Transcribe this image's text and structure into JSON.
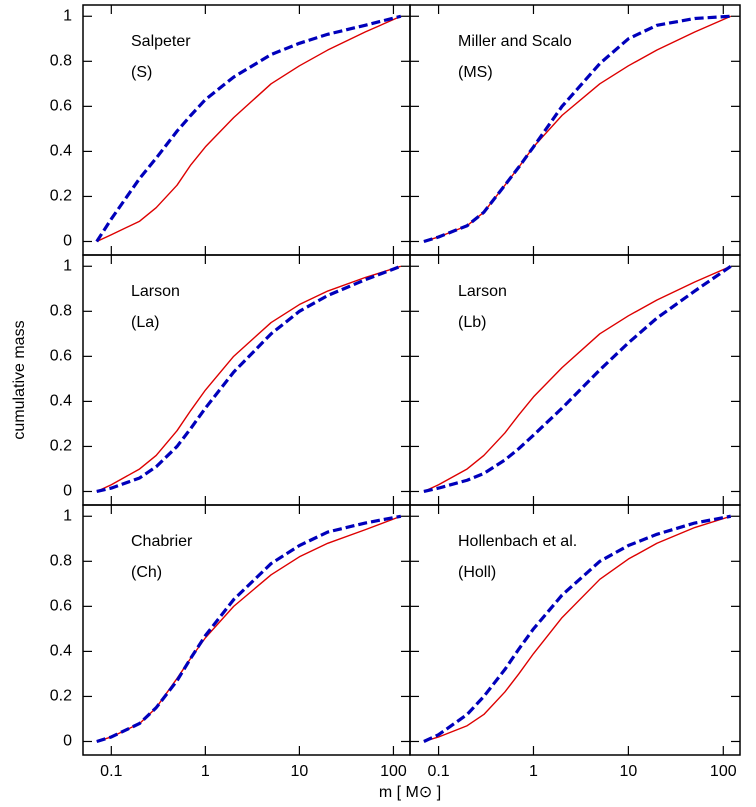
{
  "xlabel": "m   [ M⊙ ]",
  "ylabel": "cumulative mass",
  "chart_data": [
    {
      "type": "line",
      "annotations": [
        "Salpeter",
        "(S)"
      ],
      "xscale": "log",
      "x": [
        0.07,
        0.1,
        0.2,
        0.3,
        0.5,
        0.7,
        1,
        2,
        5,
        10,
        20,
        50,
        120
      ],
      "xlim": [
        0.05,
        150
      ],
      "xticks": [
        0.1,
        1,
        10,
        100
      ],
      "ylim": [
        -0.06,
        1.05
      ],
      "yticks": [
        0,
        0.2,
        0.4,
        0.6,
        0.8,
        1
      ],
      "series": [
        {
          "color": "#dd0000",
          "style": "solid",
          "values": [
            0,
            0.03,
            0.09,
            0.15,
            0.25,
            0.34,
            0.42,
            0.55,
            0.7,
            0.78,
            0.85,
            0.93,
            1
          ]
        },
        {
          "color": "#0000bb",
          "style": "dashed",
          "values": [
            0,
            0.1,
            0.28,
            0.37,
            0.49,
            0.56,
            0.63,
            0.73,
            0.83,
            0.88,
            0.92,
            0.96,
            1
          ]
        }
      ]
    },
    {
      "type": "line",
      "annotations": [
        "Miller and Scalo",
        "(MS)"
      ],
      "xscale": "log",
      "x": [
        0.07,
        0.1,
        0.2,
        0.3,
        0.5,
        0.7,
        1,
        2,
        5,
        10,
        20,
        50,
        120
      ],
      "xlim": [
        0.05,
        150
      ],
      "xticks": [
        0.1,
        1,
        10,
        100
      ],
      "ylim": [
        -0.06,
        1.05
      ],
      "yticks": [
        0,
        0.2,
        0.4,
        0.6,
        0.8,
        1
      ],
      "series": [
        {
          "color": "#dd0000",
          "style": "solid",
          "values": [
            0,
            0.02,
            0.07,
            0.13,
            0.25,
            0.33,
            0.42,
            0.56,
            0.7,
            0.78,
            0.85,
            0.93,
            1
          ]
        },
        {
          "color": "#0000bb",
          "style": "dashed",
          "values": [
            0,
            0.02,
            0.07,
            0.13,
            0.25,
            0.33,
            0.42,
            0.6,
            0.79,
            0.9,
            0.96,
            0.99,
            1
          ]
        }
      ]
    },
    {
      "type": "line",
      "annotations": [
        "Larson",
        "(La)"
      ],
      "xscale": "log",
      "x": [
        0.07,
        0.1,
        0.2,
        0.3,
        0.5,
        0.7,
        1,
        2,
        5,
        10,
        20,
        50,
        120
      ],
      "xlim": [
        0.05,
        150
      ],
      "xticks": [
        0.1,
        1,
        10,
        100
      ],
      "ylim": [
        -0.06,
        1.05
      ],
      "yticks": [
        0,
        0.2,
        0.4,
        0.6,
        0.8,
        1
      ],
      "series": [
        {
          "color": "#dd0000",
          "style": "solid",
          "values": [
            0,
            0.03,
            0.1,
            0.16,
            0.27,
            0.36,
            0.45,
            0.6,
            0.75,
            0.83,
            0.89,
            0.95,
            1
          ]
        },
        {
          "color": "#0000bb",
          "style": "dashed",
          "values": [
            0,
            0.015,
            0.06,
            0.11,
            0.2,
            0.28,
            0.37,
            0.53,
            0.7,
            0.8,
            0.87,
            0.94,
            1
          ]
        }
      ]
    },
    {
      "type": "line",
      "annotations": [
        "Larson",
        "(Lb)"
      ],
      "xscale": "log",
      "x": [
        0.07,
        0.1,
        0.2,
        0.3,
        0.5,
        0.7,
        1,
        2,
        5,
        10,
        20,
        50,
        120
      ],
      "xlim": [
        0.05,
        150
      ],
      "xticks": [
        0.1,
        1,
        10,
        100
      ],
      "ylim": [
        -0.06,
        1.05
      ],
      "yticks": [
        0,
        0.2,
        0.4,
        0.6,
        0.8,
        1
      ],
      "series": [
        {
          "color": "#dd0000",
          "style": "solid",
          "values": [
            0,
            0.03,
            0.1,
            0.16,
            0.26,
            0.34,
            0.42,
            0.55,
            0.7,
            0.78,
            0.85,
            0.93,
            1
          ]
        },
        {
          "color": "#0000bb",
          "style": "dashed",
          "values": [
            0,
            0.015,
            0.05,
            0.08,
            0.14,
            0.19,
            0.25,
            0.37,
            0.54,
            0.66,
            0.77,
            0.89,
            1
          ]
        }
      ]
    },
    {
      "type": "line",
      "annotations": [
        "Chabrier",
        "(Ch)"
      ],
      "xscale": "log",
      "x": [
        0.07,
        0.1,
        0.2,
        0.3,
        0.5,
        0.7,
        1,
        2,
        5,
        10,
        20,
        50,
        120
      ],
      "xlim": [
        0.05,
        150
      ],
      "xticks": [
        0.1,
        1,
        10,
        100
      ],
      "ylim": [
        -0.06,
        1.05
      ],
      "yticks": [
        0,
        0.2,
        0.4,
        0.6,
        0.8,
        1
      ],
      "series": [
        {
          "color": "#dd0000",
          "style": "solid",
          "values": [
            0,
            0.02,
            0.08,
            0.15,
            0.28,
            0.37,
            0.46,
            0.6,
            0.74,
            0.82,
            0.88,
            0.94,
            1
          ]
        },
        {
          "color": "#0000bb",
          "style": "dashed",
          "values": [
            0,
            0.02,
            0.08,
            0.15,
            0.27,
            0.37,
            0.47,
            0.63,
            0.79,
            0.87,
            0.93,
            0.97,
            1
          ]
        }
      ]
    },
    {
      "type": "line",
      "annotations": [
        "Hollenbach et al.",
        "(Holl)"
      ],
      "xscale": "log",
      "x": [
        0.07,
        0.1,
        0.2,
        0.3,
        0.5,
        0.7,
        1,
        2,
        5,
        10,
        20,
        50,
        120
      ],
      "xlim": [
        0.05,
        150
      ],
      "xticks": [
        0.1,
        1,
        10,
        100
      ],
      "ylim": [
        -0.06,
        1.05
      ],
      "yticks": [
        0,
        0.2,
        0.4,
        0.6,
        0.8,
        1
      ],
      "series": [
        {
          "color": "#dd0000",
          "style": "solid",
          "values": [
            0,
            0.02,
            0.07,
            0.12,
            0.22,
            0.3,
            0.39,
            0.55,
            0.72,
            0.81,
            0.88,
            0.95,
            1
          ]
        },
        {
          "color": "#0000bb",
          "style": "dashed",
          "values": [
            0,
            0.03,
            0.12,
            0.2,
            0.32,
            0.41,
            0.5,
            0.65,
            0.8,
            0.87,
            0.92,
            0.97,
            1
          ]
        }
      ]
    }
  ]
}
